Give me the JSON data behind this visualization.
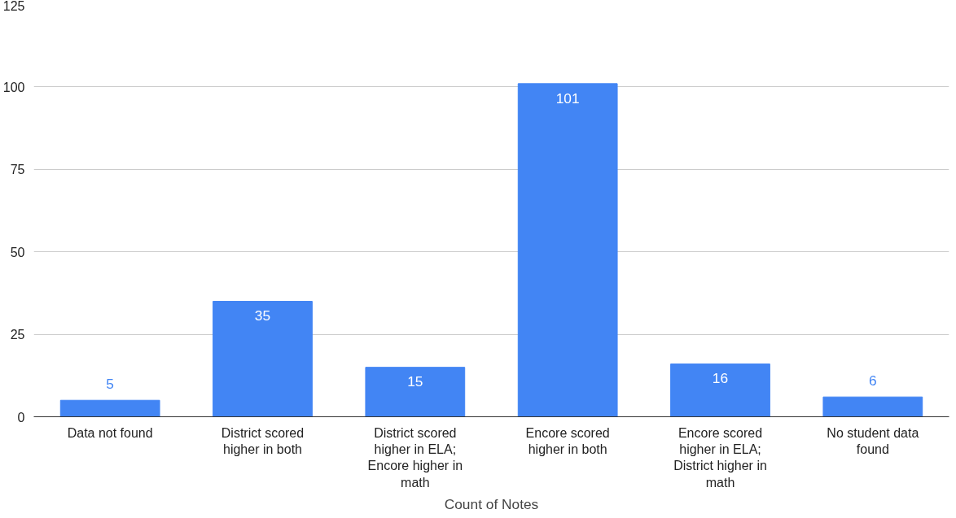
{
  "chart_data": {
    "type": "bar",
    "xlabel": "Count of Notes",
    "categories": [
      "Data not found",
      "District scored higher in both",
      "District scored higher in ELA; Encore higher in math",
      "Encore scored higher in both",
      "Encore scored higher in ELA; District higher in math",
      "No student data found"
    ],
    "values": [
      5,
      35,
      15,
      101,
      16,
      6
    ],
    "color": "#4285f4",
    "ylim": [
      0,
      125
    ],
    "yticks": [
      0,
      25,
      50,
      75,
      100,
      125
    ],
    "grid": "y",
    "data_labels": true
  }
}
